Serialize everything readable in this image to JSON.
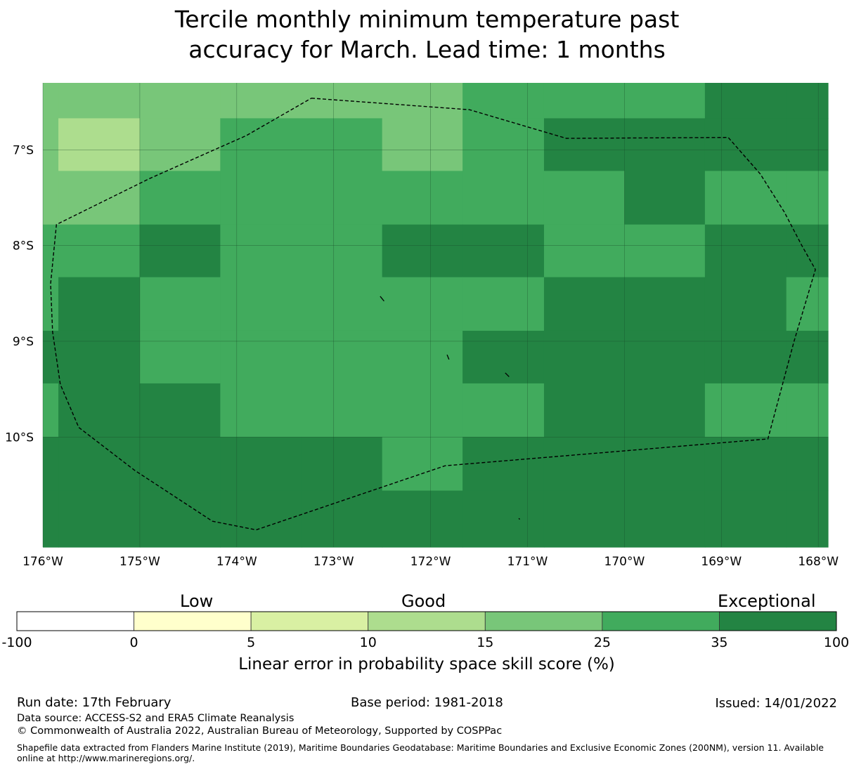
{
  "title": {
    "line1": "Tercile monthly minimum temperature past",
    "line2": "accuracy for March. Lead time: 1 months"
  },
  "map": {
    "lon_range": [
      -176,
      -167.9
    ],
    "lat_range": [
      -11.15,
      -6.3
    ],
    "lon_ticks": [
      {
        "value": -176,
        "label": "176°W"
      },
      {
        "value": -175,
        "label": "175°W"
      },
      {
        "value": -174,
        "label": "174°W"
      },
      {
        "value": -173,
        "label": "173°W"
      },
      {
        "value": -172,
        "label": "172°W"
      },
      {
        "value": -171,
        "label": "171°W"
      },
      {
        "value": -170,
        "label": "170°W"
      },
      {
        "value": -169,
        "label": "169°W"
      },
      {
        "value": -168,
        "label": "168°W"
      }
    ],
    "lat_ticks": [
      {
        "value": -7,
        "label": "7°S"
      },
      {
        "value": -8,
        "label": "8°S"
      },
      {
        "value": -9,
        "label": "9°S"
      },
      {
        "value": -10,
        "label": "10°S"
      }
    ],
    "grid_lines": true,
    "grid_lon_edges": [
      -176,
      -175.84,
      -175,
      -174.17,
      -173.33,
      -172.5,
      -171.67,
      -170.83,
      -170,
      -169.17,
      -168.33,
      -167.9
    ],
    "grid_lat_edges": [
      -6.3,
      -6.67,
      -7.22,
      -7.78,
      -8.33,
      -8.89,
      -9.44,
      -10.0,
      -10.56,
      -11.15
    ],
    "skill_classes": [
      [
        4,
        4,
        4,
        4,
        4,
        4,
        5,
        5,
        5,
        6,
        6
      ],
      [
        4,
        3,
        4,
        5,
        5,
        4,
        5,
        6,
        6,
        6,
        6
      ],
      [
        4,
        4,
        5,
        5,
        5,
        5,
        5,
        5,
        6,
        5,
        5
      ],
      [
        5,
        5,
        6,
        5,
        5,
        6,
        6,
        5,
        5,
        6,
        6
      ],
      [
        5,
        6,
        5,
        5,
        5,
        5,
        5,
        6,
        6,
        6,
        5
      ],
      [
        6,
        6,
        5,
        5,
        5,
        5,
        6,
        6,
        6,
        6,
        6
      ],
      [
        5,
        6,
        6,
        5,
        5,
        5,
        5,
        6,
        6,
        5,
        5
      ],
      [
        6,
        6,
        6,
        6,
        6,
        5,
        6,
        6,
        6,
        6,
        6
      ],
      [
        6,
        6,
        6,
        6,
        6,
        6,
        6,
        6,
        6,
        6,
        6
      ]
    ],
    "eez_boundary": [
      [
        -173.23,
        -6.46
      ],
      [
        -171.6,
        -6.58
      ],
      [
        -170.6,
        -6.88
      ],
      [
        -168.93,
        -6.87
      ],
      [
        -168.6,
        -7.25
      ],
      [
        -168.35,
        -7.65
      ],
      [
        -168.17,
        -8.0
      ],
      [
        -168.03,
        -8.25
      ],
      [
        -168.25,
        -9.0
      ],
      [
        -168.52,
        -10.02
      ],
      [
        -171.85,
        -10.3
      ],
      [
        -173.8,
        -10.97
      ],
      [
        -174.25,
        -10.88
      ],
      [
        -175.05,
        -10.35
      ],
      [
        -175.63,
        -9.9
      ],
      [
        -175.82,
        -9.45
      ],
      [
        -175.9,
        -8.9
      ],
      [
        -175.92,
        -8.4
      ],
      [
        -175.86,
        -7.78
      ],
      [
        -174.9,
        -7.3
      ],
      [
        -173.9,
        -6.85
      ],
      [
        -173.23,
        -6.46
      ]
    ],
    "islands": [
      [
        [
          -172.52,
          -8.53
        ],
        [
          -172.48,
          -8.58
        ]
      ],
      [
        [
          -171.83,
          -9.14
        ],
        [
          -171.81,
          -9.19
        ]
      ],
      [
        [
          -171.23,
          -9.33
        ],
        [
          -171.19,
          -9.37
        ]
      ],
      [
        [
          -171.09,
          -10.85
        ],
        [
          -171.08,
          -10.86
        ]
      ]
    ]
  },
  "colorbar": {
    "category_labels": {
      "low": "Low",
      "good": "Good",
      "exceptional": "Exceptional"
    },
    "bins": [
      {
        "from": "-100",
        "to": "0",
        "color": "#ffffff"
      },
      {
        "from": "0",
        "to": "5",
        "color": "#ffffcc"
      },
      {
        "from": "5",
        "to": "10",
        "color": "#d9f0a3"
      },
      {
        "from": "10",
        "to": "15",
        "color": "#addd8e"
      },
      {
        "from": "15",
        "to": "25",
        "color": "#78c679"
      },
      {
        "from": "25",
        "to": "35",
        "color": "#41ab5d"
      },
      {
        "from": "35",
        "to": "100",
        "color": "#238443"
      }
    ],
    "tick_labels": [
      "-100",
      "0",
      "5",
      "10",
      "15",
      "25",
      "35",
      "100"
    ],
    "label": "Linear error in probability space skill score (%)"
  },
  "footer": {
    "run_date": "Run date: 17th February",
    "base_period": "Base period: 1981-2018",
    "issued": "Issued: 14/01/2022",
    "data_source": "Data source: ACCESS-S2 and ERA5 Climate Reanalysis",
    "copyright": "© Commonwealth of Australia 2022, Australian Bureau of Meteorology, Supported by COSPPac",
    "shapefile": "Shapefile data extracted from Flanders Marine Institute (2019), Maritime Boundaries Geodatabase: Maritime Boundaries and Exclusive Economic Zones (200NM), version 11. Available online at http://www.marineregions.org/."
  }
}
